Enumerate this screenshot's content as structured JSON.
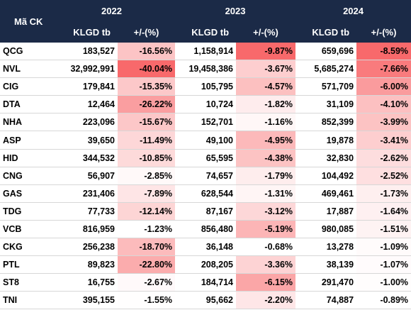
{
  "header": {
    "ticker_label": "Mã CK",
    "years": [
      "2022",
      "2023",
      "2024"
    ],
    "volume_label": "KLGD tb",
    "change_label": "+/-(%)"
  },
  "rows": [
    {
      "ticker": "QCG",
      "v2022": "183,527",
      "p2022": "-16.56%",
      "v2023": "1,158,914",
      "p2023": "-9.87%",
      "v2024": "659,696",
      "p2024": "-8.59%"
    },
    {
      "ticker": "NVL",
      "v2022": "32,992,991",
      "p2022": "-40.04%",
      "v2023": "19,458,386",
      "p2023": "-3.67%",
      "v2024": "5,685,274",
      "p2024": "-7.66%"
    },
    {
      "ticker": "CIG",
      "v2022": "179,841",
      "p2022": "-15.35%",
      "v2023": "105,795",
      "p2023": "-4.57%",
      "v2024": "571,709",
      "p2024": "-6.00%"
    },
    {
      "ticker": "DTA",
      "v2022": "12,464",
      "p2022": "-26.22%",
      "v2023": "10,724",
      "p2023": "-1.82%",
      "v2024": "31,109",
      "p2024": "-4.10%"
    },
    {
      "ticker": "NHA",
      "v2022": "223,096",
      "p2022": "-15.67%",
      "v2023": "152,701",
      "p2023": "-1.16%",
      "v2024": "852,399",
      "p2024": "-3.99%"
    },
    {
      "ticker": "ASP",
      "v2022": "39,650",
      "p2022": "-11.49%",
      "v2023": "49,100",
      "p2023": "-4.95%",
      "v2024": "19,878",
      "p2024": "-3.41%"
    },
    {
      "ticker": "HID",
      "v2022": "344,532",
      "p2022": "-10.85%",
      "v2023": "65,595",
      "p2023": "-4.38%",
      "v2024": "32,830",
      "p2024": "-2.62%"
    },
    {
      "ticker": "CNG",
      "v2022": "56,907",
      "p2022": "-2.85%",
      "v2023": "74,657",
      "p2023": "-1.79%",
      "v2024": "104,492",
      "p2024": "-2.52%"
    },
    {
      "ticker": "GAS",
      "v2022": "231,406",
      "p2022": "-7.89%",
      "v2023": "628,544",
      "p2023": "-1.31%",
      "v2024": "469,461",
      "p2024": "-1.73%"
    },
    {
      "ticker": "TDG",
      "v2022": "77,733",
      "p2022": "-12.14%",
      "v2023": "87,167",
      "p2023": "-3.12%",
      "v2024": "17,887",
      "p2024": "-1.64%"
    },
    {
      "ticker": "VCB",
      "v2022": "816,959",
      "p2022": "-1.23%",
      "v2023": "856,480",
      "p2023": "-5.19%",
      "v2024": "980,085",
      "p2024": "-1.51%"
    },
    {
      "ticker": "CKG",
      "v2022": "256,238",
      "p2022": "-18.70%",
      "v2023": "36,148",
      "p2023": "-0.68%",
      "v2024": "13,278",
      "p2024": "-1.09%"
    },
    {
      "ticker": "PTL",
      "v2022": "89,823",
      "p2022": "-22.80%",
      "v2023": "208,205",
      "p2023": "-3.36%",
      "v2024": "38,139",
      "p2024": "-1.07%"
    },
    {
      "ticker": "ST8",
      "v2022": "16,755",
      "p2022": "-2.67%",
      "v2023": "184,714",
      "p2023": "-6.15%",
      "v2024": "291,470",
      "p2024": "-1.00%"
    },
    {
      "ticker": "TNI",
      "v2022": "395,155",
      "p2022": "-1.55%",
      "v2023": "95,662",
      "p2023": "-2.20%",
      "v2024": "74,887",
      "p2024": "-0.89%"
    }
  ],
  "colors": {
    "header_bg": "#1b2a47",
    "heat_max": "#f8696b",
    "heat_min": "#ffffff"
  }
}
